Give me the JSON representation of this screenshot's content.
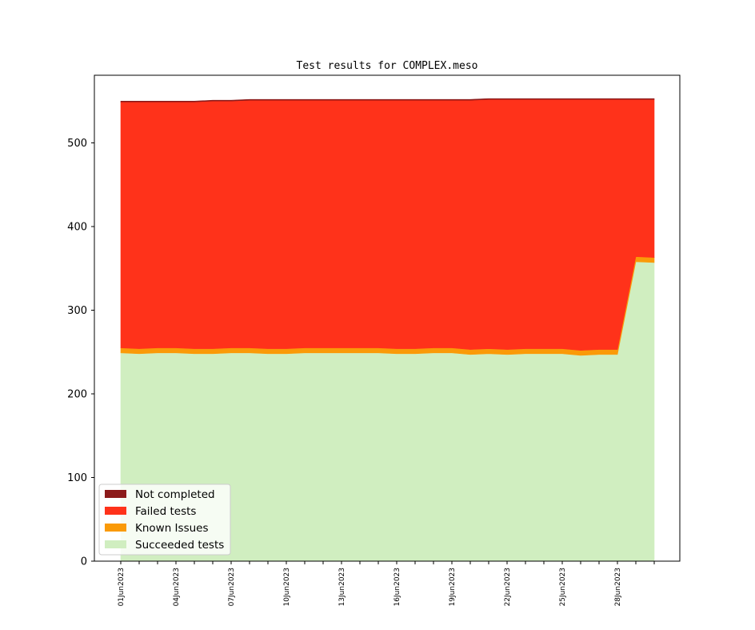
{
  "chart_data": {
    "type": "area",
    "stacked": true,
    "title": "Test results for COMPLEX.meso",
    "xlabel": "",
    "ylabel": "",
    "ylim": [
      0,
      580
    ],
    "yticks": [
      0,
      100,
      200,
      300,
      400,
      500
    ],
    "x": [
      "01Jun2023",
      "02Jun2023",
      "03Jun2023",
      "04Jun2023",
      "05Jun2023",
      "06Jun2023",
      "07Jun2023",
      "08Jun2023",
      "09Jun2023",
      "10Jun2023",
      "11Jun2023",
      "12Jun2023",
      "13Jun2023",
      "14Jun2023",
      "15Jun2023",
      "16Jun2023",
      "17Jun2023",
      "18Jun2023",
      "19Jun2023",
      "20Jun2023",
      "21Jun2023",
      "22Jun2023",
      "23Jun2023",
      "24Jun2023",
      "25Jun2023",
      "26Jun2023",
      "27Jun2023",
      "28Jun2023",
      "29Jun2023",
      "30Jun2023"
    ],
    "xtick_labels": [
      "01Jun2023",
      "04Jun2023",
      "07Jun2023",
      "10Jun2023",
      "13Jun2023",
      "16Jun2023",
      "19Jun2023",
      "22Jun2023",
      "25Jun2023",
      "28Jun2023"
    ],
    "legend_position": "lower-left",
    "series": [
      {
        "name": "Succeeded tests",
        "color": "#d0eec0",
        "values": [
          249,
          248,
          249,
          249,
          248,
          248,
          249,
          249,
          248,
          248,
          249,
          249,
          249,
          249,
          249,
          248,
          248,
          249,
          249,
          247,
          248,
          247,
          248,
          248,
          248,
          246,
          247,
          247,
          358,
          357
        ]
      },
      {
        "name": "Known Issues",
        "color": "#fa9a08",
        "values": [
          6,
          6,
          6,
          6,
          6,
          6,
          6,
          6,
          6,
          6,
          6,
          6,
          6,
          6,
          6,
          6,
          6,
          6,
          6,
          6,
          6,
          6,
          6,
          6,
          6,
          6,
          6,
          6,
          6,
          6
        ]
      },
      {
        "name": "Failed tests",
        "color": "#ff321a",
        "values": [
          294,
          295,
          294,
          294,
          295,
          296,
          295,
          296,
          297,
          297,
          296,
          296,
          296,
          296,
          296,
          297,
          297,
          296,
          296,
          298,
          298,
          299,
          298,
          298,
          298,
          300,
          299,
          299,
          188,
          189
        ]
      },
      {
        "name": "Not completed",
        "color": "#8c1a1a",
        "values": [
          1,
          1,
          1,
          1,
          1,
          1,
          1,
          1,
          1,
          1,
          1,
          1,
          1,
          1,
          1,
          1,
          1,
          1,
          1,
          1,
          1,
          1,
          1,
          1,
          1,
          1,
          1,
          1,
          1,
          1
        ]
      }
    ]
  }
}
